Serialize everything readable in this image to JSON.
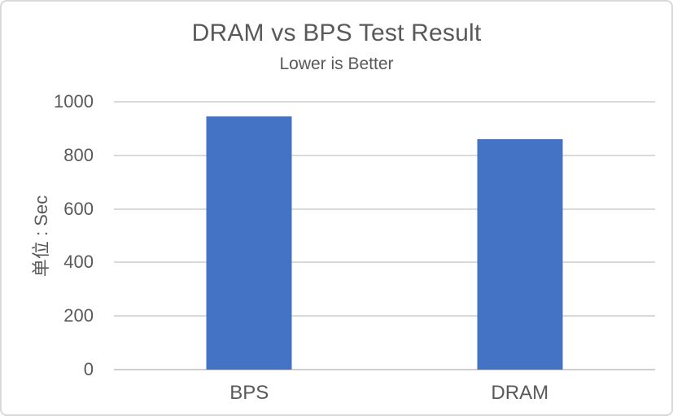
{
  "chart_data": {
    "type": "bar",
    "title": "DRAM vs BPS Test Result",
    "subtitle": "Lower is Better",
    "categories": [
      "BPS",
      "DRAM"
    ],
    "values": [
      945,
      860
    ],
    "xlabel": "",
    "ylabel": "单位 : Sec",
    "ylim": [
      0,
      1000
    ],
    "ytick_interval": 200,
    "yticks": [
      1000,
      800,
      600,
      400,
      200,
      0
    ],
    "grid": true,
    "legend": "none",
    "colors": {
      "bar": "#4472C4",
      "gridline": "#D9D9D9",
      "axis_line": "#CFCFCF",
      "text": "#595959",
      "frame_border": "#D9D9D9",
      "background": "#FFFFFF"
    }
  }
}
